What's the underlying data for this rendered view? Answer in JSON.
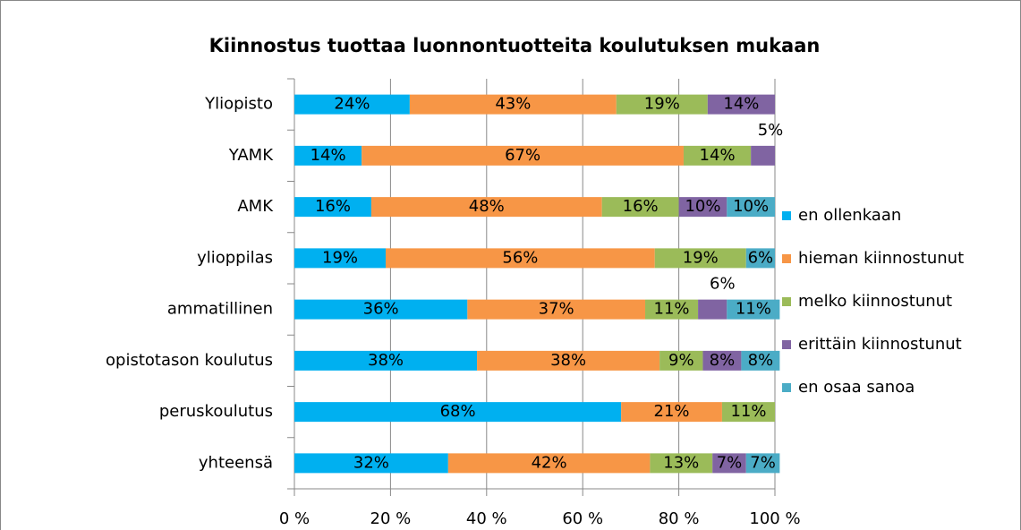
{
  "chart_data": {
    "type": "stacked-barh",
    "title": "Kiinnostus tuottaa luonnontuotteita koulutuksen mukaan",
    "categories": [
      "Yliopisto",
      "YAMK",
      "AMK",
      "ylioppilas",
      "ammatillinen",
      "opistotason koulutus",
      "peruskoulutus",
      "yhteensä"
    ],
    "series": [
      {
        "name": "en ollenkaan",
        "color": "#00b0f0",
        "values": [
          24,
          14,
          16,
          19,
          36,
          38,
          68,
          32
        ],
        "value_labels": [
          "24%",
          "14%",
          "16%",
          "19%",
          "36%",
          "38%",
          "68%",
          "32%"
        ]
      },
      {
        "name": "hieman kiinnostunut",
        "color": "#f79646",
        "values": [
          43,
          67,
          48,
          56,
          37,
          38,
          21,
          42
        ],
        "value_labels": [
          "43%",
          "67%",
          "48%",
          "56%",
          "37%",
          "38%",
          "21%",
          "42%"
        ]
      },
      {
        "name": "melko kiinnostunut",
        "color": "#9bbb59",
        "values": [
          19,
          14,
          16,
          19,
          11,
          9,
          11,
          13
        ],
        "value_labels": [
          "19%",
          "14%",
          "16%",
          "19%",
          "11%",
          "9%",
          "11%",
          "13%"
        ]
      },
      {
        "name": "erittäin kiinnostunut",
        "color": "#8064a2",
        "values": [
          14,
          5,
          10,
          null,
          6,
          8,
          null,
          7
        ],
        "value_labels": [
          "14%",
          "5%",
          "10%",
          null,
          "6%",
          "8%",
          null,
          "7%"
        ]
      },
      {
        "name": "en osaa sanoa",
        "color": "#4bacc6",
        "values": [
          null,
          null,
          10,
          6,
          11,
          8,
          null,
          7
        ],
        "value_labels": [
          null,
          null,
          "10%",
          "6%",
          "11%",
          "8%",
          null,
          "7%"
        ]
      }
    ],
    "xlim": [
      0,
      100
    ],
    "xticks": [
      {
        "value": 0,
        "label": "0 %"
      },
      {
        "value": 20,
        "label": "20 %"
      },
      {
        "value": 40,
        "label": "40 %"
      },
      {
        "value": 60,
        "label": "60 %"
      },
      {
        "value": 80,
        "label": "80 %"
      },
      {
        "value": 100,
        "label": "100 %"
      }
    ],
    "grid": true,
    "legend": "right"
  }
}
